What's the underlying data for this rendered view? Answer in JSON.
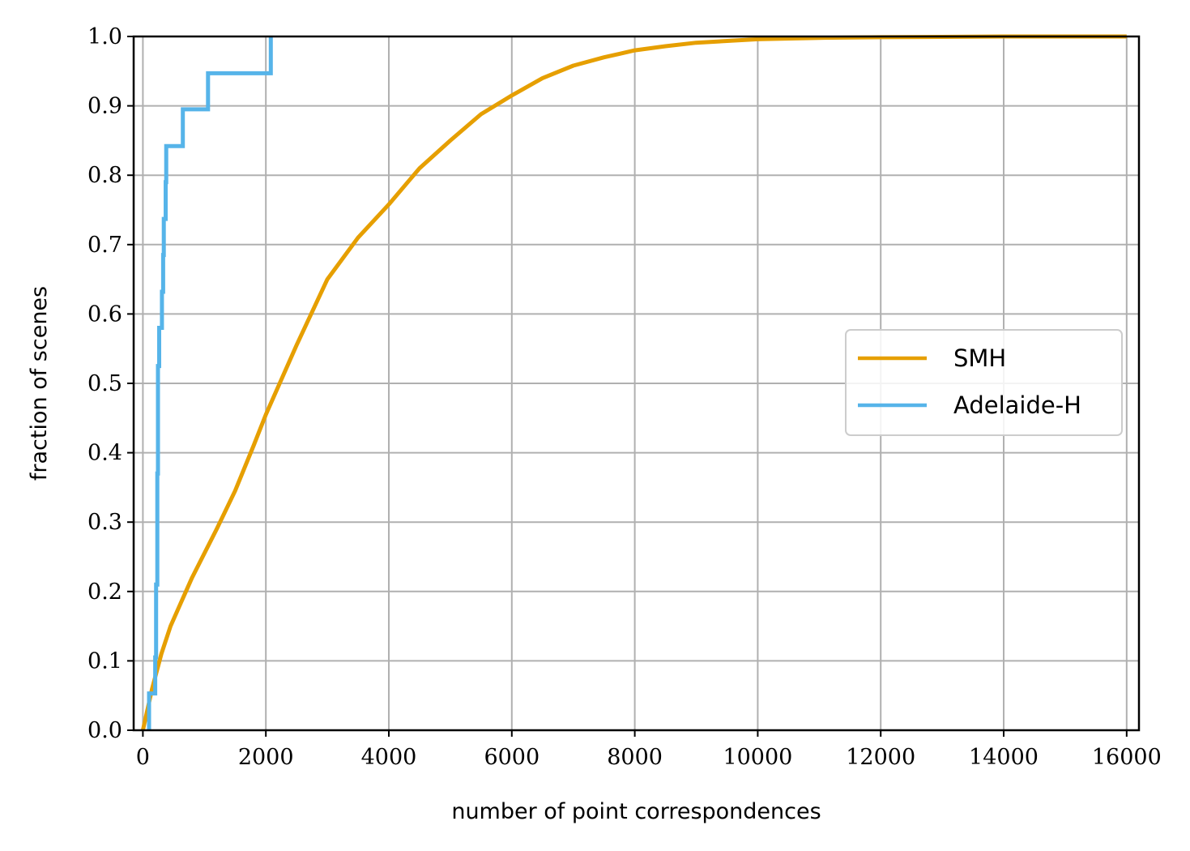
{
  "chart_data": {
    "type": "line",
    "title": "",
    "xlabel": "number of point correspondences",
    "ylabel": "fraction of scenes",
    "xlim": [
      -150,
      16200
    ],
    "ylim": [
      0,
      1
    ],
    "xticks": [
      0,
      2000,
      4000,
      6000,
      8000,
      10000,
      12000,
      14000,
      16000
    ],
    "yticks": [
      0.0,
      0.1,
      0.2,
      0.3,
      0.4,
      0.5,
      0.6,
      0.7,
      0.8,
      0.9,
      1.0
    ],
    "xtick_labels": [
      "0",
      "2000",
      "4000",
      "6000",
      "8000",
      "10000",
      "12000",
      "14000",
      "16000"
    ],
    "ytick_labels": [
      "0.0",
      "0.1",
      "0.2",
      "0.3",
      "0.4",
      "0.5",
      "0.6",
      "0.7",
      "0.8",
      "0.9",
      "1.0"
    ],
    "grid": true,
    "legend_position": "center-right",
    "series": [
      {
        "name": "SMH",
        "color": "#E69F00",
        "style": "smooth",
        "points": [
          [
            0,
            0.0
          ],
          [
            50,
            0.02
          ],
          [
            150,
            0.06
          ],
          [
            300,
            0.11
          ],
          [
            450,
            0.15
          ],
          [
            600,
            0.18
          ],
          [
            800,
            0.22
          ],
          [
            1000,
            0.255
          ],
          [
            1200,
            0.29
          ],
          [
            1500,
            0.345
          ],
          [
            1800,
            0.41
          ],
          [
            2000,
            0.455
          ],
          [
            2500,
            0.555
          ],
          [
            3000,
            0.65
          ],
          [
            3500,
            0.71
          ],
          [
            4000,
            0.758
          ],
          [
            4500,
            0.81
          ],
          [
            5000,
            0.85
          ],
          [
            5500,
            0.888
          ],
          [
            6000,
            0.915
          ],
          [
            6500,
            0.94
          ],
          [
            7000,
            0.958
          ],
          [
            7500,
            0.97
          ],
          [
            8000,
            0.98
          ],
          [
            8500,
            0.986
          ],
          [
            9000,
            0.991
          ],
          [
            10000,
            0.996
          ],
          [
            11000,
            0.998
          ],
          [
            12000,
            0.999
          ],
          [
            14000,
            1.0
          ],
          [
            16000,
            1.0
          ]
        ]
      },
      {
        "name": "Adelaide-H",
        "color": "#56B4E9",
        "style": "step",
        "points": [
          [
            100,
            0.0
          ],
          [
            100,
            0.053
          ],
          [
            200,
            0.053
          ],
          [
            200,
            0.105
          ],
          [
            215,
            0.105
          ],
          [
            215,
            0.21
          ],
          [
            235,
            0.21
          ],
          [
            235,
            0.37
          ],
          [
            245,
            0.37
          ],
          [
            245,
            0.525
          ],
          [
            265,
            0.525
          ],
          [
            265,
            0.58
          ],
          [
            310,
            0.58
          ],
          [
            310,
            0.632
          ],
          [
            330,
            0.632
          ],
          [
            330,
            0.685
          ],
          [
            340,
            0.685
          ],
          [
            340,
            0.737
          ],
          [
            370,
            0.737
          ],
          [
            370,
            0.79
          ],
          [
            380,
            0.79
          ],
          [
            380,
            0.842
          ],
          [
            650,
            0.842
          ],
          [
            650,
            0.895
          ],
          [
            1060,
            0.895
          ],
          [
            1060,
            0.947
          ],
          [
            2080,
            0.947
          ],
          [
            2080,
            1.0
          ]
        ]
      }
    ]
  }
}
